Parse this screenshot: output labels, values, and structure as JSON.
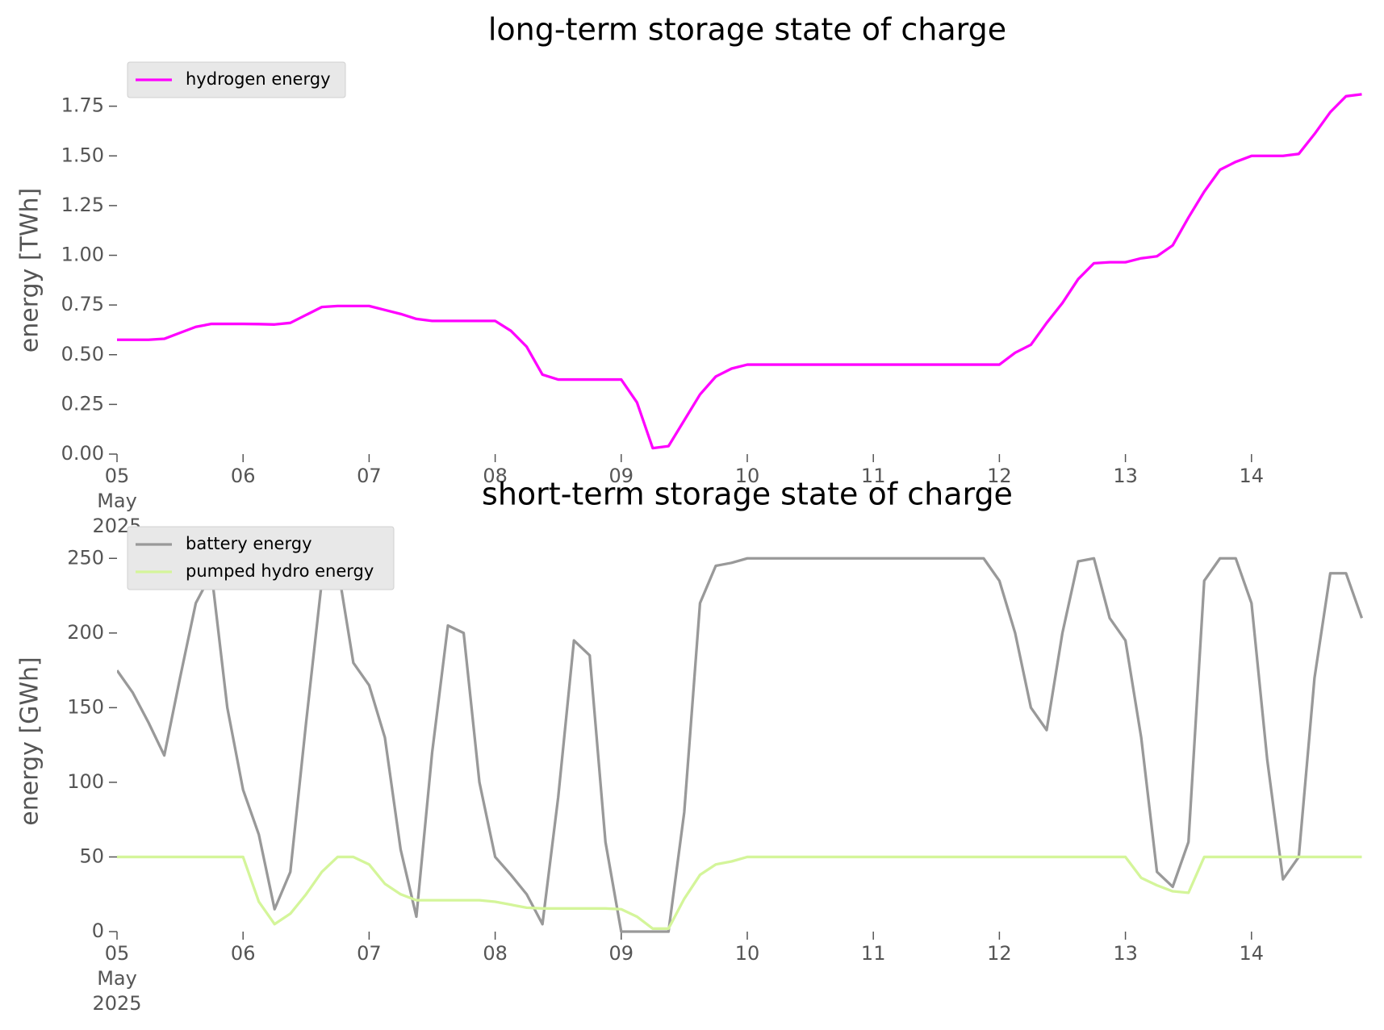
{
  "chart_data": [
    {
      "type": "line",
      "title": "long-term storage state of charge",
      "ylabel": "energy [TWh]",
      "legend": "upper left",
      "x": [
        5,
        5.125,
        5.25,
        5.375,
        5.5,
        5.625,
        5.75,
        5.875,
        6,
        6.125,
        6.25,
        6.375,
        6.5,
        6.625,
        6.75,
        6.875,
        7,
        7.125,
        7.25,
        7.375,
        7.5,
        7.625,
        7.75,
        7.875,
        8,
        8.125,
        8.25,
        8.375,
        8.5,
        8.625,
        8.75,
        8.875,
        9,
        9.125,
        9.25,
        9.375,
        9.5,
        9.625,
        9.75,
        9.875,
        10,
        10.125,
        10.25,
        10.375,
        10.5,
        10.625,
        10.75,
        10.875,
        11,
        11.125,
        11.25,
        11.375,
        11.5,
        11.625,
        11.75,
        11.875,
        12,
        12.125,
        12.25,
        12.375,
        12.5,
        12.625,
        12.75,
        12.875,
        13,
        13.125,
        13.25,
        13.375,
        13.5,
        13.625,
        13.75,
        13.875,
        14,
        14.125,
        14.25,
        14.375,
        14.5,
        14.625,
        14.75,
        14.875
      ],
      "series": [
        {
          "name": "hydrogen energy",
          "color": "#ff00ff",
          "values": [
            0.575,
            0.575,
            0.575,
            0.58,
            0.61,
            0.64,
            0.655,
            0.655,
            0.655,
            0.654,
            0.652,
            0.66,
            0.7,
            0.74,
            0.745,
            0.745,
            0.745,
            0.725,
            0.705,
            0.68,
            0.67,
            0.67,
            0.67,
            0.67,
            0.67,
            0.62,
            0.54,
            0.4,
            0.375,
            0.375,
            0.375,
            0.375,
            0.375,
            0.26,
            0.03,
            0.04,
            0.17,
            0.3,
            0.39,
            0.43,
            0.45,
            0.45,
            0.45,
            0.45,
            0.45,
            0.45,
            0.45,
            0.45,
            0.45,
            0.45,
            0.45,
            0.45,
            0.45,
            0.45,
            0.45,
            0.45,
            0.45,
            0.51,
            0.55,
            0.66,
            0.76,
            0.88,
            0.96,
            0.965,
            0.965,
            0.985,
            0.995,
            1.05,
            1.19,
            1.32,
            1.43,
            1.47,
            1.5,
            1.5,
            1.5,
            1.51,
            1.61,
            1.72,
            1.8,
            1.81
          ]
        }
      ],
      "xlim": [
        5,
        15
      ],
      "xticks": [
        {
          "value": 5,
          "label": "05\nMay\n2025"
        },
        {
          "value": 6,
          "label": "06"
        },
        {
          "value": 7,
          "label": "07"
        },
        {
          "value": 8,
          "label": "08"
        },
        {
          "value": 9,
          "label": "09"
        },
        {
          "value": 10,
          "label": "10"
        },
        {
          "value": 11,
          "label": "11"
        },
        {
          "value": 12,
          "label": "12"
        },
        {
          "value": 13,
          "label": "13"
        },
        {
          "value": 14,
          "label": "14"
        }
      ],
      "ylim": [
        0,
        1.85
      ],
      "yticks": [
        {
          "value": 0,
          "label": "0.00"
        },
        {
          "value": 0.25,
          "label": "0.25"
        },
        {
          "value": 0.5,
          "label": "0.50"
        },
        {
          "value": 0.75,
          "label": "0.75"
        },
        {
          "value": 1,
          "label": "1.00"
        },
        {
          "value": 1.25,
          "label": "1.25"
        },
        {
          "value": 1.5,
          "label": "1.50"
        },
        {
          "value": 1.75,
          "label": "1.75"
        }
      ]
    },
    {
      "type": "line",
      "title": "short-term storage state of charge",
      "ylabel": "energy [GWh]",
      "legend": "upper left",
      "x": [
        5,
        5.125,
        5.25,
        5.375,
        5.5,
        5.625,
        5.75,
        5.875,
        6,
        6.125,
        6.25,
        6.375,
        6.5,
        6.625,
        6.75,
        6.875,
        7,
        7.125,
        7.25,
        7.375,
        7.5,
        7.625,
        7.75,
        7.875,
        8,
        8.125,
        8.25,
        8.375,
        8.5,
        8.625,
        8.75,
        8.875,
        9,
        9.125,
        9.25,
        9.375,
        9.5,
        9.625,
        9.75,
        9.875,
        10,
        10.125,
        10.25,
        10.375,
        10.5,
        10.625,
        10.75,
        10.875,
        11,
        11.125,
        11.25,
        11.375,
        11.5,
        11.625,
        11.75,
        11.875,
        12,
        12.125,
        12.25,
        12.375,
        12.5,
        12.625,
        12.75,
        12.875,
        13,
        13.125,
        13.25,
        13.375,
        13.5,
        13.625,
        13.75,
        13.875,
        14,
        14.125,
        14.25,
        14.375,
        14.5,
        14.625,
        14.75,
        14.875
      ],
      "series": [
        {
          "name": "battery energy",
          "color": "#999999",
          "values": [
            175,
            160,
            140,
            118,
            170,
            220,
            240,
            150,
            95,
            65,
            15,
            40,
            140,
            235,
            245,
            180,
            165,
            130,
            55,
            10,
            120,
            205,
            200,
            100,
            50,
            38,
            25,
            5,
            90,
            195,
            185,
            60,
            0,
            0,
            0,
            0,
            80,
            220,
            245,
            247,
            250,
            250,
            250,
            250,
            250,
            250,
            250,
            250,
            250,
            250,
            250,
            250,
            250,
            250,
            250,
            250,
            235,
            200,
            150,
            135,
            200,
            248,
            250,
            210,
            195,
            130,
            40,
            30,
            60,
            235,
            250,
            250,
            220,
            115,
            35,
            50,
            170,
            240,
            240,
            210
          ]
        },
        {
          "name": "pumped hydro energy",
          "color": "#d4f59a",
          "values": [
            50,
            50,
            50,
            50,
            50,
            50,
            50,
            50,
            50,
            20,
            5,
            12,
            25,
            40,
            50,
            50,
            45,
            32,
            25,
            21,
            21,
            21,
            21,
            21,
            20,
            18,
            16,
            15.5,
            15.5,
            15.5,
            15.5,
            15.5,
            15,
            10,
            2,
            2,
            22,
            38,
            45,
            47,
            50,
            50,
            50,
            50,
            50,
            50,
            50,
            50,
            50,
            50,
            50,
            50,
            50,
            50,
            50,
            50,
            50,
            50,
            50,
            50,
            50,
            50,
            50,
            50,
            50,
            36,
            31,
            27,
            26,
            50,
            50,
            50,
            50,
            50,
            50,
            50,
            50,
            50,
            50,
            50
          ]
        }
      ],
      "xlim": [
        5,
        15
      ],
      "xticks": [
        {
          "value": 5,
          "label": "05\nMay\n2025"
        },
        {
          "value": 6,
          "label": "06"
        },
        {
          "value": 7,
          "label": "07"
        },
        {
          "value": 8,
          "label": "08"
        },
        {
          "value": 9,
          "label": "09"
        },
        {
          "value": 10,
          "label": "10"
        },
        {
          "value": 11,
          "label": "11"
        },
        {
          "value": 12,
          "label": "12"
        },
        {
          "value": 13,
          "label": "13"
        },
        {
          "value": 14,
          "label": "14"
        }
      ],
      "ylim": [
        0,
        255
      ],
      "yticks": [
        0,
        50,
        100,
        150,
        200,
        250
      ]
    }
  ]
}
